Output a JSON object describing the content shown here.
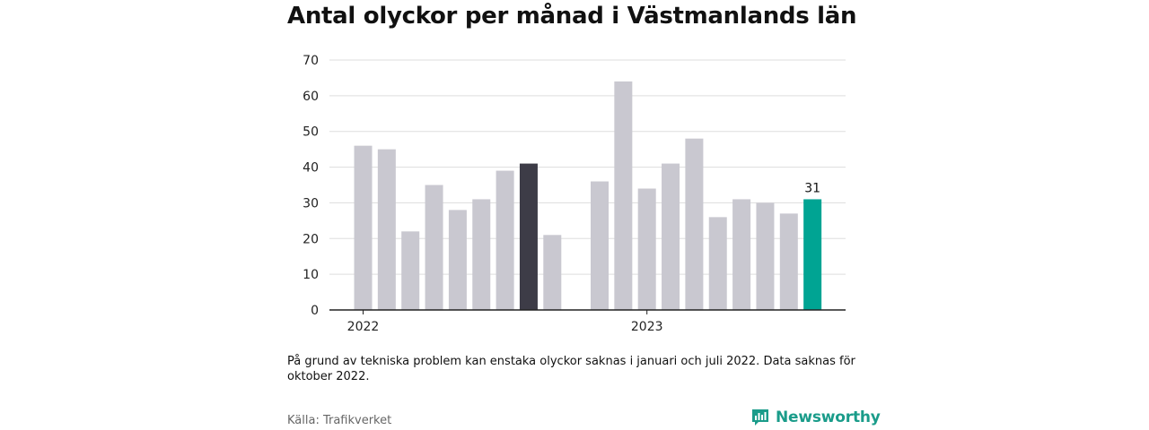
{
  "title": "Antal olyckor per månad i Västmanlands län",
  "note": "På grund av tekniska problem kan enstaka olyckor saknas i januari och juli 2022. Data saknas för oktober 2022.",
  "source": "Källa: Trafikverket",
  "logo": {
    "name": "Newsworthy"
  },
  "colors": {
    "default_bar": "#c9c8d0",
    "highlight_dark": "#3d3c47",
    "highlight_latest": "#00a493",
    "grid": "#dddddd",
    "baseline": "#222222"
  },
  "chart_data": {
    "type": "bar",
    "categories": [
      "2022-01",
      "2022-02",
      "2022-03",
      "2022-04",
      "2022-05",
      "2022-06",
      "2022-07",
      "2022-08",
      "2022-09",
      "2022-10",
      "2022-11",
      "2022-12",
      "2023-01",
      "2023-02",
      "2023-03",
      "2023-04",
      "2023-05",
      "2023-06",
      "2023-07",
      "2023-08",
      "2023-09"
    ],
    "values": [
      46,
      45,
      22,
      35,
      28,
      31,
      39,
      41,
      21,
      null,
      36,
      64,
      34,
      41,
      48,
      26,
      31,
      30,
      27,
      31,
      null
    ],
    "highlight": {
      "2022-08": "dark",
      "2023-08": "latest"
    },
    "x_tick_labels": [
      "2022",
      "2023"
    ],
    "data_labels": [
      {
        "category": "2023-08",
        "text": "31"
      }
    ],
    "yticks": [
      0,
      10,
      20,
      30,
      40,
      50,
      60,
      70
    ],
    "ylim": [
      0,
      70
    ],
    "grid": true,
    "legend": "none",
    "xlabel": "",
    "ylabel": ""
  }
}
